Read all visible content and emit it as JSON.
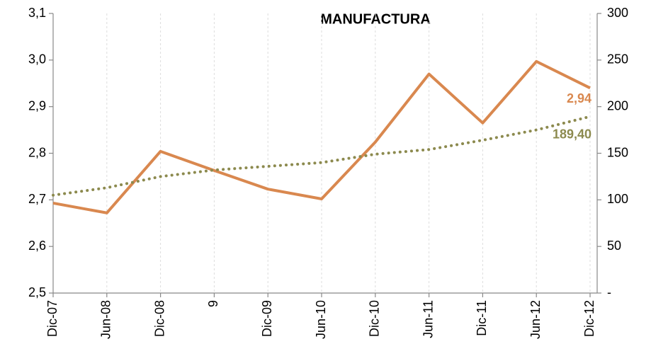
{
  "chart_data": {
    "type": "line",
    "title": "MANUFACTURA",
    "categories": [
      "Dic-07",
      "Jun-08",
      "Dic-08",
      "9",
      "Dic-09",
      "Jun-10",
      "Dic-10",
      "Jun-11",
      "Dic-11",
      "Jun-12",
      "Dic-12"
    ],
    "series": [
      {
        "color": "#d9884f",
        "values": [
          2.693,
          2.672,
          2.804,
          2.763,
          2.723,
          2.702,
          2.824,
          2.97,
          2.865,
          2.997,
          2.94
        ],
        "value_labels": [
          null,
          null,
          null,
          null,
          null,
          null,
          null,
          null,
          null,
          null,
          "2,94"
        ]
      },
      {
        "color": "#8c8a4e",
        "axis": "y2",
        "style": "dotted",
        "values": [
          105,
          113,
          125,
          132,
          136,
          140,
          149,
          154,
          164,
          175,
          189.4
        ],
        "value_labels": [
          null,
          null,
          null,
          null,
          null,
          null,
          null,
          null,
          null,
          null,
          "189,40"
        ]
      }
    ],
    "ylim": [
      2.5,
      3.1
    ],
    "yticks": [
      {
        "value": 2.5,
        "label": "2,5"
      },
      {
        "value": 2.6,
        "label": "2,6"
      },
      {
        "value": 2.7,
        "label": "2,7"
      },
      {
        "value": 2.8,
        "label": "2,8"
      },
      {
        "value": 2.9,
        "label": "2,9"
      },
      {
        "value": 3.0,
        "label": "3,0"
      },
      {
        "value": 3.1,
        "label": "3,1"
      }
    ],
    "y2lim": [
      0,
      300
    ],
    "y2ticks": [
      {
        "value": 0,
        "label": "-"
      },
      50,
      100,
      150,
      200,
      250,
      300
    ],
    "grid": "x"
  }
}
